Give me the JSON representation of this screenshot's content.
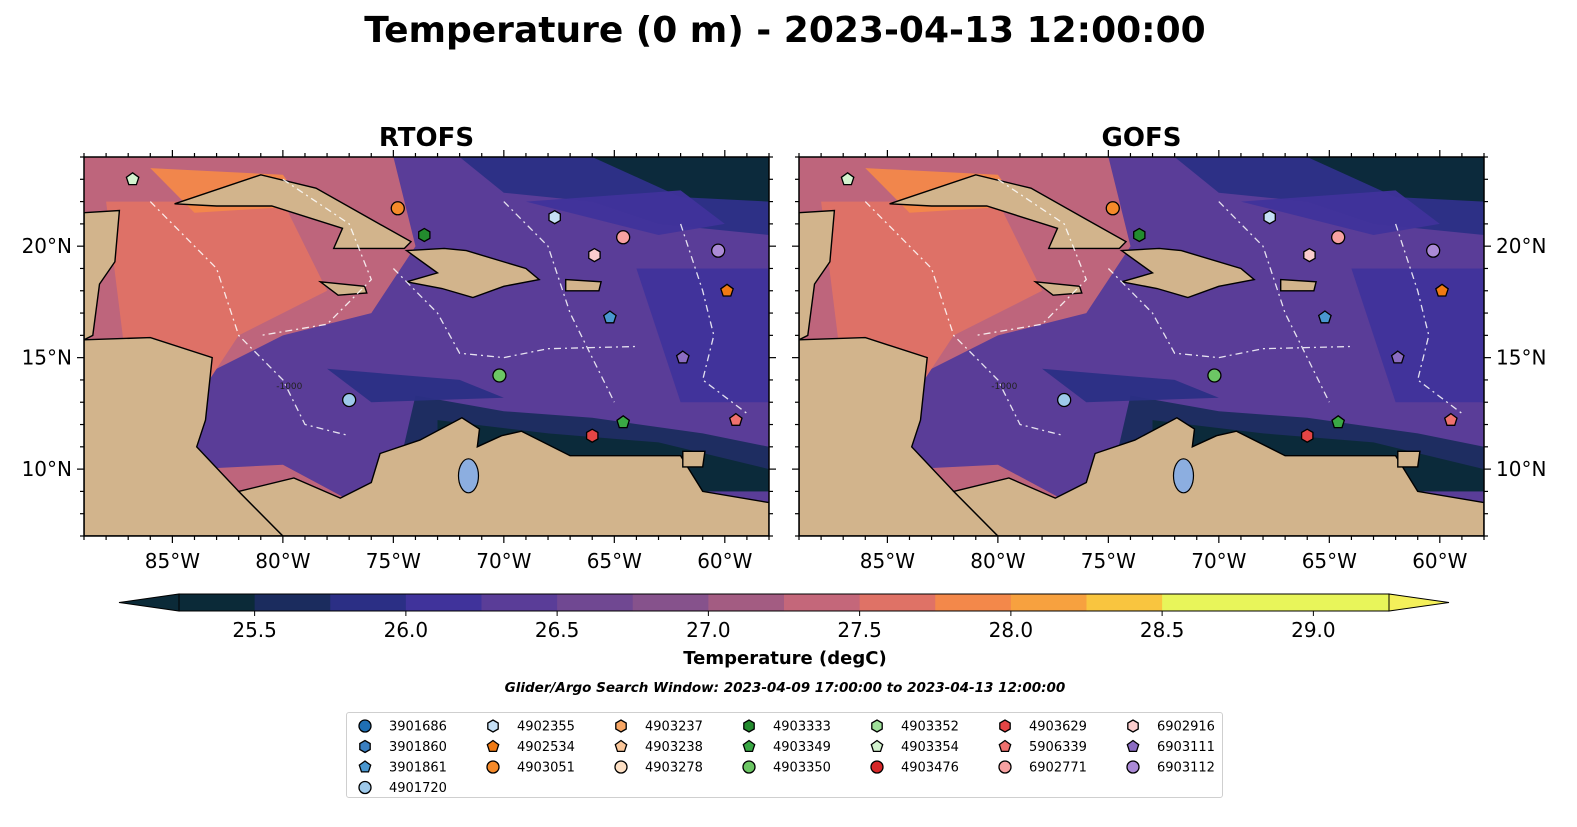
{
  "figure": {
    "title": "Temperature (0 m) - 2023-04-13 12:00:00",
    "search_window": "Glider/Argo Search Window: 2023-04-09 17:00:00 to 2023-04-13 12:00:00"
  },
  "colors": {
    "land": "#d2b48c",
    "lake": "#8caee0",
    "river": "#9fb6cc",
    "colormap": [
      "#0b2a38",
      "#1b2c5e",
      "#2b2f85",
      "#40339b",
      "#5a3d98",
      "#704892",
      "#86528c",
      "#a35c82",
      "#c4677a",
      "#df7266",
      "#f3884a",
      "#f7a13f",
      "#f9c53f",
      "#e8f55a"
    ]
  },
  "chart_data": [
    {
      "type": "heatmap",
      "title": "RTOFS",
      "xlim": [
        -89.0,
        -58.0
      ],
      "ylim": [
        7.0,
        24.0
      ],
      "x_ticks": [
        "85°W",
        "80°W",
        "75°W",
        "70°W",
        "65°W",
        "60°W"
      ],
      "x_tick_values": [
        -85,
        -80,
        -75,
        -70,
        -65,
        -60
      ],
      "y_ticks": [
        "20°N",
        "15°N",
        "10°N"
      ],
      "y_tick_values": [
        20,
        15,
        10
      ],
      "y_axis_side": "left",
      "contour_label": "-1000"
    },
    {
      "type": "heatmap",
      "title": "GOFS",
      "xlim": [
        -89.0,
        -58.0
      ],
      "ylim": [
        7.0,
        24.0
      ],
      "x_ticks": [
        "85°W",
        "80°W",
        "75°W",
        "70°W",
        "65°W",
        "60°W"
      ],
      "x_tick_values": [
        -85,
        -80,
        -75,
        -70,
        -65,
        -60
      ],
      "y_ticks": [
        "20°N",
        "15°N",
        "10°N"
      ],
      "y_tick_values": [
        20,
        15,
        10
      ],
      "y_axis_side": "right",
      "contour_label": "-1000"
    }
  ],
  "colorbar": {
    "label": "Temperature (degC)",
    "min": 25.25,
    "max": 29.25,
    "step": 0.25,
    "ticks": [
      "25.5",
      "26.0",
      "26.5",
      "27.0",
      "27.5",
      "28.0",
      "28.5",
      "29.0"
    ],
    "tick_values": [
      25.5,
      26.0,
      26.5,
      27.0,
      27.5,
      28.0,
      28.5,
      29.0
    ],
    "extend": "both"
  },
  "floats": [
    {
      "id": "3901686",
      "marker": "circle",
      "color": "#1f6fb4",
      "lon": null,
      "lat": null
    },
    {
      "id": "3901860",
      "marker": "hexagon",
      "color": "#3a7fc1",
      "lon": null,
      "lat": null
    },
    {
      "id": "3901861",
      "marker": "pentagon",
      "color": "#4a97d0",
      "lon": -65.2,
      "lat": 16.8
    },
    {
      "id": "4901720",
      "marker": "circle",
      "color": "#9ec9ea",
      "lon": -77.0,
      "lat": 13.1
    },
    {
      "id": "4902355",
      "marker": "hexagon",
      "color": "#c6e0f5",
      "lon": -67.7,
      "lat": 21.3
    },
    {
      "id": "4902534",
      "marker": "pentagon",
      "color": "#f07a14",
      "lon": -59.9,
      "lat": 18.0
    },
    {
      "id": "4903051",
      "marker": "circle",
      "color": "#f58a2a",
      "lon": -74.8,
      "lat": 21.7
    },
    {
      "id": "4903237",
      "marker": "hexagon",
      "color": "#f8a765",
      "lon": null,
      "lat": null
    },
    {
      "id": "4903238",
      "marker": "pentagon",
      "color": "#fbc79a",
      "lon": null,
      "lat": null
    },
    {
      "id": "4903278",
      "marker": "circle",
      "color": "#fde0c5",
      "lon": null,
      "lat": null
    },
    {
      "id": "4903333",
      "marker": "hexagon",
      "color": "#238b2e",
      "lon": -73.6,
      "lat": 20.5
    },
    {
      "id": "4903349",
      "marker": "pentagon",
      "color": "#3aa845",
      "lon": -64.6,
      "lat": 12.1
    },
    {
      "id": "4903350",
      "marker": "circle",
      "color": "#6cc664",
      "lon": -70.2,
      "lat": 14.2
    },
    {
      "id": "4903352",
      "marker": "hexagon",
      "color": "#9fe09a",
      "lon": null,
      "lat": null
    },
    {
      "id": "4903354",
      "marker": "pentagon",
      "color": "#d3f3cf",
      "lon": -86.8,
      "lat": 23.0
    },
    {
      "id": "4903476",
      "marker": "circle",
      "color": "#d62728",
      "lon": null,
      "lat": null
    },
    {
      "id": "4903629",
      "marker": "hexagon",
      "color": "#e54545",
      "lon": -66.0,
      "lat": 11.5
    },
    {
      "id": "5906339",
      "marker": "pentagon",
      "color": "#f0716e",
      "lon": -59.5,
      "lat": 12.2
    },
    {
      "id": "6902771",
      "marker": "circle",
      "color": "#f7a1a1",
      "lon": -64.6,
      "lat": 20.4
    },
    {
      "id": "6902916",
      "marker": "hexagon",
      "color": "#fbcdcd",
      "lon": -65.9,
      "lat": 19.6
    },
    {
      "id": "6903111",
      "marker": "pentagon",
      "color": "#8b6cc2",
      "lon": -61.9,
      "lat": 15.0
    },
    {
      "id": "6903112",
      "marker": "circle",
      "color": "#ab8ad6",
      "lon": -60.3,
      "lat": 19.8
    }
  ]
}
